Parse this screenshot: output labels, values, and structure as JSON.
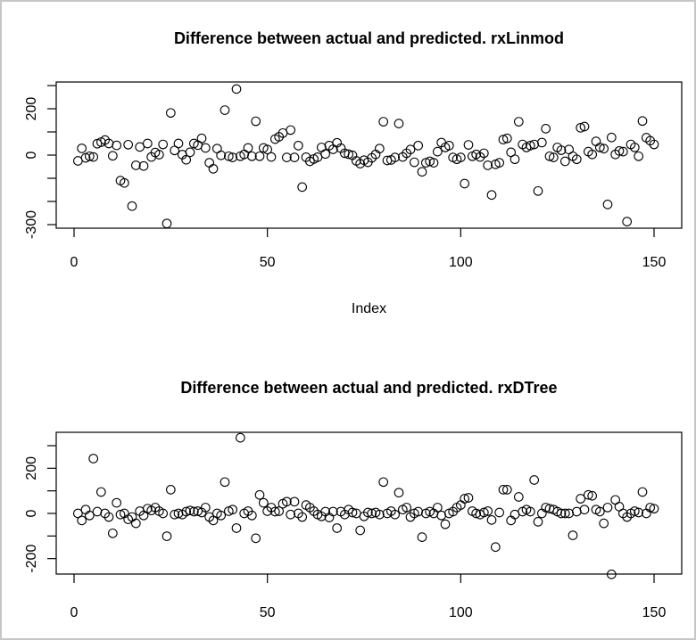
{
  "frame": {
    "background": "#ffffff",
    "border_color": "#c6c6c6",
    "point_color": "#000000"
  },
  "chart_data": [
    {
      "type": "scatter",
      "title": "Difference between actual and predicted. rxLinmod",
      "xlabel": "Index",
      "ylabel": "",
      "marker": "open-circle",
      "marker_color": "#000000",
      "x_rule": "Index 1..150 (one point per index)",
      "x_ticks": [
        0,
        50,
        100,
        150
      ],
      "y_ticks": [
        300,
        200,
        100,
        0,
        -100,
        -200,
        -300
      ],
      "y_tick_labels": [
        {
          "value": 200,
          "label": "200"
        },
        {
          "value": 0,
          "label": "0"
        },
        {
          "value": -300,
          "label": "-300"
        }
      ],
      "xlim_approx": [
        -5,
        156
      ],
      "ylim_approx": [
        -310,
        320
      ],
      "grid": false,
      "y": [
        -25,
        29,
        -12,
        -5,
        -8,
        49,
        56,
        65,
        50,
        -3,
        42,
        -110,
        -120,
        45,
        -220,
        -44,
        35,
        -47,
        50,
        -8,
        11,
        2,
        46,
        -295,
        182,
        20,
        50,
        2,
        -20,
        12,
        50,
        43,
        72,
        31,
        -33,
        -59,
        28,
        -1,
        194,
        -5,
        -10,
        285,
        -5,
        3,
        31,
        -5,
        146,
        -5,
        31,
        24,
        -8,
        69,
        79,
        95,
        -10,
        108,
        -10,
        41,
        -138,
        -9,
        -27,
        -17,
        -9,
        33,
        5,
        41,
        25,
        53,
        30,
        8,
        4,
        -1,
        -25,
        -37,
        -22,
        -31,
        -12,
        3,
        28,
        144,
        -23,
        -21,
        -10,
        136,
        -8,
        8,
        24,
        -31,
        41,
        -72,
        -33,
        -27,
        -33,
        15,
        54,
        33,
        41,
        -10,
        -18,
        -10,
        -123,
        44,
        -5,
        3,
        -8,
        8,
        -44,
        -172,
        -40,
        -33,
        67,
        72,
        12,
        -18,
        144,
        46,
        33,
        41,
        46,
        -155,
        54,
        114,
        -5,
        -10,
        33,
        21,
        -27,
        24,
        -5,
        -18,
        118,
        123,
        15,
        3,
        59,
        33,
        28,
        -213,
        76,
        3,
        18,
        15,
        -287,
        46,
        33,
        -5,
        147,
        75,
        62,
        46
      ]
    },
    {
      "type": "scatter",
      "title": "Difference between actual and predicted. rxDTree",
      "xlabel": "",
      "ylabel": "",
      "marker": "open-circle",
      "marker_color": "#000000",
      "x_rule": "Index 1..150 (one point per index)",
      "x_ticks": [
        0,
        50,
        100,
        150
      ],
      "y_ticks": [
        300,
        200,
        100,
        0,
        -100,
        -200
      ],
      "y_tick_labels": [
        {
          "value": 200,
          "label": "200"
        },
        {
          "value": 0,
          "label": "0"
        },
        {
          "value": -200,
          "label": "-200"
        }
      ],
      "xlim_approx": [
        -5,
        156
      ],
      "ylim_approx": [
        -275,
        360
      ],
      "grid": false,
      "y": [
        0,
        -31,
        17,
        -9,
        243,
        8,
        95,
        0,
        -16,
        -88,
        47,
        -5,
        0,
        -26,
        -16,
        -44,
        10,
        -9,
        21,
        13,
        26,
        10,
        0,
        -101,
        105,
        -5,
        0,
        -5,
        8,
        13,
        8,
        10,
        4,
        26,
        -16,
        -31,
        0,
        -9,
        139,
        10,
        17,
        -65,
        335,
        0,
        10,
        -9,
        -110,
        82,
        47,
        10,
        26,
        8,
        10,
        43,
        52,
        -5,
        52,
        0,
        -16,
        37,
        26,
        10,
        -5,
        -13,
        8,
        -18,
        8,
        -65,
        8,
        -5,
        17,
        4,
        0,
        -75,
        -13,
        4,
        0,
        4,
        -5,
        139,
        0,
        10,
        -5,
        92,
        17,
        26,
        -16,
        0,
        8,
        -105,
        0,
        8,
        0,
        26,
        -9,
        -48,
        0,
        8,
        26,
        37,
        65,
        69,
        10,
        0,
        -5,
        4,
        10,
        -29,
        -149,
        4,
        105,
        105,
        -31,
        -5,
        73,
        8,
        17,
        8,
        148,
        -37,
        0,
        26,
        21,
        17,
        8,
        0,
        0,
        0,
        -97,
        8,
        65,
        17,
        82,
        78,
        17,
        8,
        -44,
        26,
        -270,
        60,
        30,
        0,
        -16,
        0,
        10,
        4,
        95,
        0,
        26,
        21
      ]
    }
  ]
}
